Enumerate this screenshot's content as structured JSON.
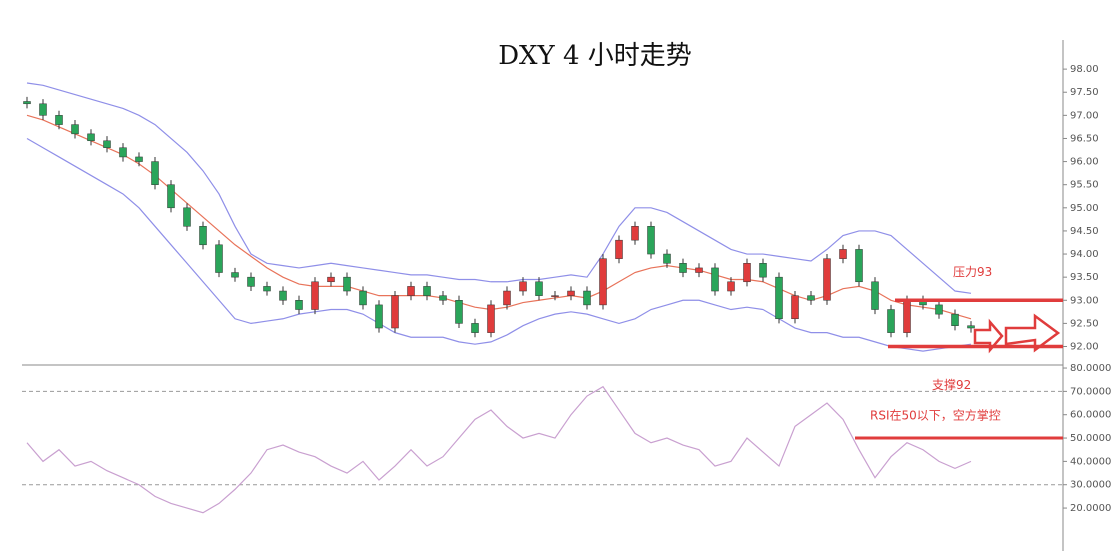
{
  "chart_data": [
    {
      "type": "candlestick",
      "title": "DXY 4 小时走势",
      "up_color": "#e03c3c",
      "down_color": "#2aa55a",
      "open": [
        97.3,
        97.25,
        97.0,
        96.8,
        96.6,
        96.45,
        96.3,
        96.1,
        96.0,
        95.5,
        95.0,
        94.6,
        94.2,
        93.6,
        93.5,
        93.3,
        93.2,
        93.0,
        92.8,
        93.4,
        93.5,
        93.2,
        92.9,
        92.4,
        93.1,
        93.3,
        93.1,
        93.0,
        92.5,
        92.3,
        92.9,
        93.2,
        93.4,
        93.1,
        93.1,
        93.2,
        92.9,
        93.9,
        94.3,
        94.6,
        94.0,
        93.8,
        93.6,
        93.7,
        93.2,
        93.4,
        93.8,
        93.5,
        92.6,
        93.1,
        93.0,
        93.9,
        94.1,
        93.4,
        92.8,
        92.3,
        93.0,
        92.9,
        92.7,
        92.45
      ],
      "high": [
        97.4,
        97.35,
        97.1,
        96.9,
        96.7,
        96.55,
        96.4,
        96.2,
        96.1,
        95.6,
        95.1,
        94.7,
        94.3,
        93.7,
        93.6,
        93.4,
        93.3,
        93.1,
        93.5,
        93.6,
        93.6,
        93.3,
        93.0,
        93.2,
        93.4,
        93.4,
        93.2,
        93.1,
        92.6,
        93.0,
        93.3,
        93.5,
        93.5,
        93.2,
        93.3,
        93.3,
        94.0,
        94.4,
        94.7,
        94.7,
        94.1,
        93.9,
        93.8,
        93.8,
        93.5,
        93.9,
        93.9,
        93.6,
        93.2,
        93.2,
        94.0,
        94.2,
        94.2,
        93.5,
        92.9,
        93.1,
        93.1,
        93.0,
        92.8,
        92.55
      ],
      "low": [
        97.15,
        96.9,
        96.7,
        96.5,
        96.35,
        96.2,
        96.0,
        95.9,
        95.4,
        94.9,
        94.5,
        94.1,
        93.5,
        93.4,
        93.2,
        93.1,
        92.9,
        92.7,
        92.7,
        93.3,
        93.1,
        92.8,
        92.3,
        92.3,
        93.0,
        93.0,
        92.9,
        92.4,
        92.2,
        92.2,
        92.8,
        93.1,
        93.0,
        93.0,
        93.0,
        92.8,
        92.8,
        93.8,
        94.2,
        93.9,
        93.7,
        93.5,
        93.5,
        93.1,
        93.1,
        93.3,
        93.4,
        92.5,
        92.5,
        92.9,
        92.9,
        93.8,
        93.3,
        92.7,
        92.2,
        92.2,
        92.8,
        92.6,
        92.35,
        92.3
      ],
      "close": [
        97.25,
        97.0,
        96.8,
        96.6,
        96.45,
        96.3,
        96.1,
        96.0,
        95.5,
        95.0,
        94.6,
        94.2,
        93.6,
        93.5,
        93.3,
        93.2,
        93.0,
        92.8,
        93.4,
        93.5,
        93.2,
        92.9,
        92.4,
        93.1,
        93.3,
        93.1,
        93.0,
        92.5,
        92.3,
        92.9,
        93.2,
        93.4,
        93.1,
        93.1,
        93.2,
        92.9,
        93.9,
        94.3,
        94.6,
        94.0,
        93.8,
        93.6,
        93.7,
        93.2,
        93.4,
        93.8,
        93.5,
        92.6,
        93.1,
        93.0,
        93.9,
        94.1,
        93.4,
        92.8,
        92.3,
        93.0,
        92.9,
        92.7,
        92.45,
        92.4
      ],
      "bands": [
        {
          "color": "#8f8fe8",
          "values": [
            97.7,
            97.65,
            97.55,
            97.45,
            97.35,
            97.25,
            97.15,
            97.0,
            96.8,
            96.5,
            96.2,
            95.8,
            95.3,
            94.6,
            94.0,
            93.8,
            93.75,
            93.7,
            93.75,
            93.8,
            93.75,
            93.7,
            93.65,
            93.6,
            93.55,
            93.55,
            93.5,
            93.45,
            93.45,
            93.4,
            93.4,
            93.45,
            93.45,
            93.5,
            93.55,
            93.5,
            94.0,
            94.6,
            95.0,
            95.0,
            94.9,
            94.7,
            94.5,
            94.3,
            94.1,
            94.0,
            94.0,
            93.95,
            93.9,
            93.85,
            94.1,
            94.4,
            94.5,
            94.5,
            94.4,
            94.1,
            93.8,
            93.5,
            93.2,
            93.15
          ]
        },
        {
          "color": "#e8735a",
          "values": [
            97.0,
            96.9,
            96.75,
            96.6,
            96.45,
            96.3,
            96.15,
            95.95,
            95.7,
            95.4,
            95.1,
            94.8,
            94.5,
            94.2,
            93.95,
            93.7,
            93.5,
            93.35,
            93.3,
            93.3,
            93.3,
            93.2,
            93.1,
            93.1,
            93.1,
            93.1,
            93.05,
            92.95,
            92.85,
            92.8,
            92.85,
            92.95,
            93.0,
            93.05,
            93.1,
            93.05,
            93.2,
            93.4,
            93.6,
            93.7,
            93.75,
            93.7,
            93.65,
            93.55,
            93.45,
            93.45,
            93.4,
            93.25,
            93.1,
            93.0,
            93.1,
            93.25,
            93.3,
            93.2,
            93.0,
            92.9,
            92.85,
            92.8,
            92.7,
            92.6
          ]
        },
        {
          "color": "#8f8fe8",
          "values": [
            96.5,
            96.3,
            96.1,
            95.9,
            95.7,
            95.5,
            95.3,
            95.0,
            94.6,
            94.2,
            93.8,
            93.4,
            93.0,
            92.6,
            92.5,
            92.55,
            92.6,
            92.7,
            92.75,
            92.8,
            92.8,
            92.7,
            92.5,
            92.3,
            92.2,
            92.2,
            92.2,
            92.1,
            92.05,
            92.1,
            92.25,
            92.45,
            92.6,
            92.7,
            92.75,
            92.7,
            92.6,
            92.5,
            92.6,
            92.8,
            92.9,
            93.0,
            93.0,
            92.9,
            92.8,
            92.85,
            92.8,
            92.6,
            92.4,
            92.3,
            92.3,
            92.2,
            92.2,
            92.1,
            92.0,
            91.95,
            91.9,
            91.95,
            92.0,
            92.05
          ]
        }
      ],
      "ylim": [
        91.6,
        98.5
      ],
      "yticks": [
        {
          "value": 92,
          "label": "92.00"
        },
        {
          "value": 92.5,
          "label": "92.50"
        },
        {
          "value": 93,
          "label": "93.00"
        },
        {
          "value": 93.5,
          "label": "93.50"
        },
        {
          "value": 94,
          "label": "94.00"
        },
        {
          "value": 94.5,
          "label": "94.50"
        },
        {
          "value": 95,
          "label": "95.00"
        },
        {
          "value": 95.5,
          "label": "95.50"
        },
        {
          "value": 96,
          "label": "96.00"
        },
        {
          "value": 96.5,
          "label": "96.50"
        },
        {
          "value": 97,
          "label": "97.00"
        },
        {
          "value": 97.5,
          "label": "97.50"
        },
        {
          "value": 98,
          "label": "98.00"
        }
      ],
      "annotations": [
        {
          "text": "压力93",
          "level": 93,
          "color": "#e03c3c"
        },
        {
          "text": "支撑92",
          "level": 92,
          "color": "#e03c3c"
        }
      ]
    },
    {
      "type": "line",
      "color": "#c9a0d0",
      "values": [
        48,
        40,
        45,
        38,
        40,
        36,
        33,
        30,
        25,
        22,
        20,
        18,
        22,
        28,
        35,
        45,
        47,
        44,
        42,
        38,
        35,
        40,
        32,
        38,
        45,
        38,
        42,
        50,
        58,
        62,
        55,
        50,
        52,
        50,
        60,
        68,
        72,
        62,
        52,
        48,
        50,
        47,
        45,
        38,
        40,
        50,
        44,
        38,
        55,
        60,
        65,
        58,
        45,
        33,
        42,
        48,
        45,
        40,
        37,
        40
      ],
      "ylim": [
        1.6,
        81.3
      ],
      "yticks": [
        {
          "value": 20,
          "label": "20.0000"
        },
        {
          "value": 30,
          "label": "30.0000"
        },
        {
          "value": 40,
          "label": "40.0000"
        },
        {
          "value": 50,
          "label": "50.0000"
        },
        {
          "value": 60,
          "label": "60.0000"
        },
        {
          "value": 70,
          "label": "70.0000"
        },
        {
          "value": 80,
          "label": "80.0000"
        }
      ],
      "reference_lines": [
        70,
        30
      ],
      "annotations": [
        {
          "text": "RSI在50以下，空方掌控",
          "level": 50,
          "color": "#e03c3c"
        }
      ]
    }
  ]
}
